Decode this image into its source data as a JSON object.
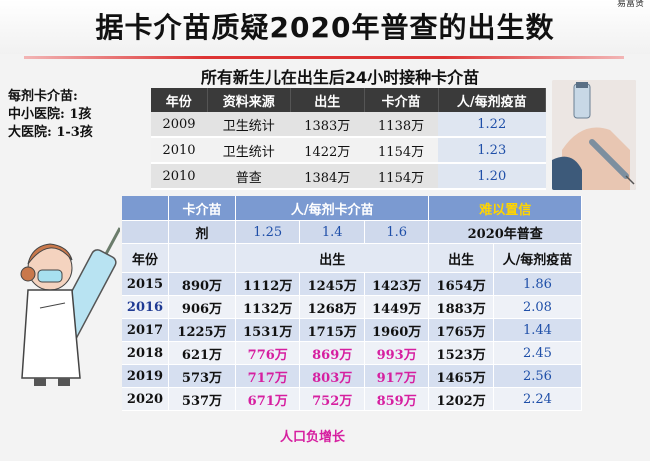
{
  "header": {
    "title": "据卡介苗质疑2020年普查的出生数",
    "corner_mark": "易富贤"
  },
  "subtitle": "所有新生儿在出生后24小时接种卡介苗",
  "side_note": {
    "line1": "每剂卡介苗:",
    "line2": "中小医院: 1孩",
    "line3": "大医院: 1-3孩"
  },
  "table1": {
    "headers": [
      "年份",
      "资料来源",
      "出生",
      "卡介苗",
      "人/每剂疫苗"
    ],
    "rows": [
      [
        "2009",
        "卫生统计",
        "1383万",
        "1138万",
        "1.22"
      ],
      [
        "2010",
        "卫生统计",
        "1422万",
        "1154万",
        "1.23"
      ],
      [
        "2010",
        "普查",
        "1384万",
        "1154万",
        "1.20"
      ]
    ]
  },
  "table2": {
    "header": {
      "bcg": "卡介苗",
      "per_dose": "人/每剂卡介苗",
      "unbelievable": "难以置信"
    },
    "sub": {
      "dose": "剂",
      "v1": "1.25",
      "v2": "1.4",
      "v3": "1.6",
      "census": "2020年普查"
    },
    "labels": {
      "year": "年份",
      "births": "出生",
      "births2": "出生",
      "ratio": "人/每剂疫苗"
    },
    "rows": [
      [
        "2015",
        "890万",
        "1112万",
        "1245万",
        "1423万",
        "1654万",
        "1.86"
      ],
      [
        "2016",
        "906万",
        "1132万",
        "1268万",
        "1449万",
        "1883万",
        "2.08"
      ],
      [
        "2017",
        "1225万",
        "1531万",
        "1715万",
        "1960万",
        "1765万",
        "1.44"
      ],
      [
        "2018",
        "621万",
        "776万",
        "869万",
        "993万",
        "1523万",
        "2.45"
      ],
      [
        "2019",
        "573万",
        "717万",
        "803万",
        "917万",
        "1465万",
        "2.56"
      ],
      [
        "2020",
        "537万",
        "671万",
        "752万",
        "859万",
        "1202万",
        "2.24"
      ]
    ]
  },
  "footnote": "人口负增长",
  "colors": {
    "accent_red": "#dd3333",
    "header_blue": "#7b9ad1",
    "highlight_magenta": "#d61fa0",
    "warning_yellow": "#ffd400"
  }
}
